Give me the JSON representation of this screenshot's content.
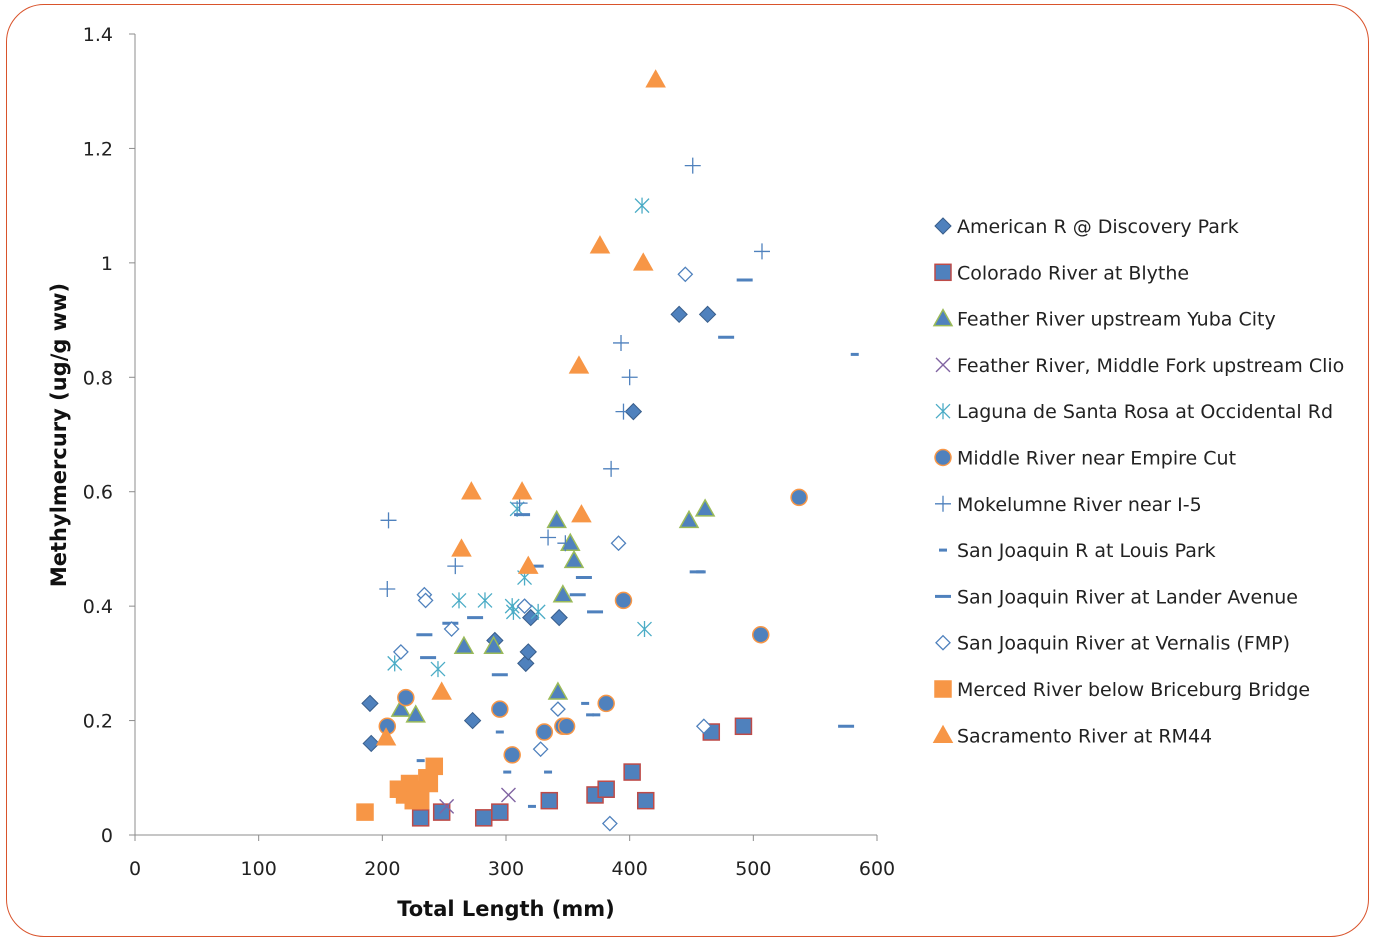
{
  "chart_data": {
    "type": "scatter",
    "title": "",
    "xlabel": "Total Length (mm)",
    "ylabel": "Methylmercury (ug/g ww)",
    "xlim": [
      0,
      600
    ],
    "ylim": [
      0,
      1.4
    ],
    "xticks": [
      0,
      100,
      200,
      300,
      400,
      500,
      600
    ],
    "yticks": [
      0,
      0.2,
      0.4,
      0.6,
      0.8,
      1,
      1.2,
      1.4
    ],
    "ytick_labels": [
      "0",
      "0.2",
      "0.4",
      "0.6",
      "0.8",
      "1",
      "1.2",
      "1.4"
    ],
    "grid": false,
    "legend_position": "right",
    "series": [
      {
        "name": "American R @ Discovery Park",
        "marker": "diamond",
        "fill": "#4f81bd",
        "stroke": "#385d8a",
        "points": [
          [
            190,
            0.23
          ],
          [
            191,
            0.16
          ],
          [
            273,
            0.2
          ],
          [
            291,
            0.34
          ],
          [
            316,
            0.3
          ],
          [
            318,
            0.32
          ],
          [
            320,
            0.38
          ],
          [
            343,
            0.38
          ],
          [
            403,
            0.74
          ],
          [
            440,
            0.91
          ],
          [
            463,
            0.91
          ]
        ]
      },
      {
        "name": "Colorado River at Blythe",
        "marker": "square",
        "fill": "#4f81bd",
        "stroke": "#be4b48",
        "points": [
          [
            231,
            0.03
          ],
          [
            248,
            0.04
          ],
          [
            282,
            0.03
          ],
          [
            295,
            0.04
          ],
          [
            335,
            0.06
          ],
          [
            372,
            0.07
          ],
          [
            381,
            0.08
          ],
          [
            402,
            0.11
          ],
          [
            413,
            0.06
          ],
          [
            466,
            0.18
          ],
          [
            492,
            0.19
          ]
        ]
      },
      {
        "name": "Feather River upstream Yuba City",
        "marker": "triangle",
        "fill": "#4f81bd",
        "stroke": "#9bbb59",
        "points": [
          [
            215,
            0.22
          ],
          [
            227,
            0.21
          ],
          [
            266,
            0.33
          ],
          [
            290,
            0.33
          ],
          [
            341,
            0.55
          ],
          [
            342,
            0.25
          ],
          [
            346,
            0.42
          ],
          [
            352,
            0.51
          ],
          [
            355,
            0.48
          ],
          [
            448,
            0.55
          ],
          [
            461,
            0.57
          ]
        ]
      },
      {
        "name": "Feather River, Middle Fork upstream Clio",
        "marker": "x",
        "fill": "none",
        "stroke": "#8064a2",
        "points": [
          [
            252,
            0.05
          ],
          [
            302,
            0.07
          ]
        ]
      },
      {
        "name": "Laguna de Santa Rosa at Occidental Rd",
        "marker": "asterisk",
        "fill": "none",
        "stroke": "#4bacc6",
        "points": [
          [
            210,
            0.3
          ],
          [
            245,
            0.29
          ],
          [
            262,
            0.41
          ],
          [
            283,
            0.41
          ],
          [
            305,
            0.4
          ],
          [
            306,
            0.39
          ],
          [
            309,
            0.57
          ],
          [
            315,
            0.45
          ],
          [
            326,
            0.39
          ],
          [
            410,
            1.1
          ],
          [
            412,
            0.36
          ]
        ]
      },
      {
        "name": "Middle River near Empire Cut",
        "marker": "circle",
        "fill": "#4f81bd",
        "stroke": "#f79646",
        "points": [
          [
            204,
            0.19
          ],
          [
            219,
            0.24
          ],
          [
            295,
            0.22
          ],
          [
            305,
            0.14
          ],
          [
            331,
            0.18
          ],
          [
            346,
            0.19
          ],
          [
            349,
            0.19
          ],
          [
            381,
            0.23
          ],
          [
            395,
            0.41
          ],
          [
            506,
            0.35
          ],
          [
            537,
            0.59
          ]
        ]
      },
      {
        "name": "Mokelumne River near I-5",
        "marker": "plus",
        "fill": "none",
        "stroke": "#4f81bd",
        "points": [
          [
            204,
            0.43
          ],
          [
            205,
            0.55
          ],
          [
            259,
            0.47
          ],
          [
            311,
            0.58
          ],
          [
            334,
            0.52
          ],
          [
            348,
            0.51
          ],
          [
            385,
            0.64
          ],
          [
            393,
            0.86
          ],
          [
            395,
            0.74
          ],
          [
            400,
            0.8
          ],
          [
            451,
            1.17
          ],
          [
            507,
            1.02
          ]
        ]
      },
      {
        "name": "San Joaquin R at Louis Park",
        "marker": "dash-short",
        "fill": "none",
        "stroke": "#4f81bd",
        "points": [
          [
            231,
            0.13
          ],
          [
            233,
            0.05
          ],
          [
            295,
            0.18
          ],
          [
            301,
            0.11
          ],
          [
            321,
            0.05
          ],
          [
            334,
            0.11
          ],
          [
            364,
            0.23
          ],
          [
            368,
            0.21
          ],
          [
            373,
            0.21
          ],
          [
            457,
            0.46
          ],
          [
            582,
            0.84
          ]
        ]
      },
      {
        "name": "San Joaquin River at Lander Avenue",
        "marker": "dash-long",
        "fill": "none",
        "stroke": "#4f81bd",
        "points": [
          [
            234,
            0.35
          ],
          [
            237,
            0.31
          ],
          [
            255,
            0.37
          ],
          [
            275,
            0.38
          ],
          [
            295,
            0.28
          ],
          [
            313,
            0.56
          ],
          [
            324,
            0.47
          ],
          [
            358,
            0.42
          ],
          [
            363,
            0.45
          ],
          [
            372,
            0.39
          ],
          [
            455,
            0.46
          ],
          [
            478,
            0.87
          ],
          [
            493,
            0.97
          ],
          [
            575,
            0.19
          ]
        ]
      },
      {
        "name": "San Joaquin River at Vernalis (FMP)",
        "marker": "diamond-open",
        "fill": "#ffffff",
        "stroke": "#4f81bd",
        "points": [
          [
            215,
            0.32
          ],
          [
            234,
            0.42
          ],
          [
            235,
            0.41
          ],
          [
            256,
            0.36
          ],
          [
            315,
            0.4
          ],
          [
            328,
            0.15
          ],
          [
            342,
            0.22
          ],
          [
            384,
            0.02
          ],
          [
            391,
            0.51
          ],
          [
            445,
            0.98
          ],
          [
            460,
            0.19
          ]
        ]
      },
      {
        "name": "Merced River below Briceburg Bridge",
        "marker": "square",
        "fill": "#f79646",
        "stroke": "#f79646",
        "points": [
          [
            186,
            0.04
          ],
          [
            213,
            0.08
          ],
          [
            218,
            0.07
          ],
          [
            222,
            0.09
          ],
          [
            225,
            0.06
          ],
          [
            227,
            0.08
          ],
          [
            231,
            0.06
          ],
          [
            236,
            0.1
          ],
          [
            238,
            0.09
          ],
          [
            242,
            0.12
          ]
        ]
      },
      {
        "name": "Sacramento River at RM44",
        "marker": "triangle",
        "fill": "#f79646",
        "stroke": "#f79646",
        "points": [
          [
            203,
            0.17
          ],
          [
            248,
            0.25
          ],
          [
            264,
            0.5
          ],
          [
            272,
            0.6
          ],
          [
            313,
            0.6
          ],
          [
            318,
            0.47
          ],
          [
            359,
            0.82
          ],
          [
            361,
            0.56
          ],
          [
            376,
            1.03
          ],
          [
            411,
            1.0
          ],
          [
            421,
            1.32
          ]
        ]
      }
    ]
  }
}
